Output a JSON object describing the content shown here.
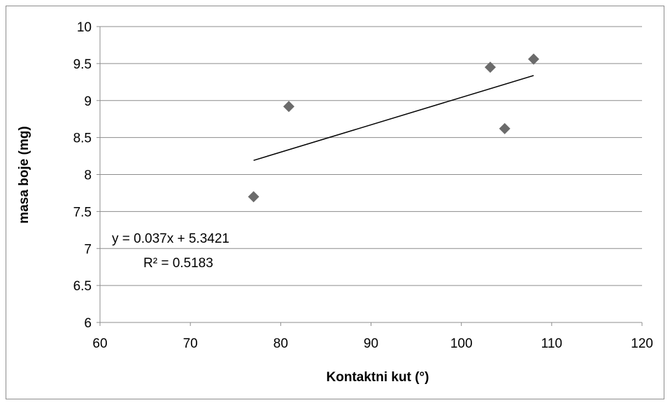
{
  "chart_data": {
    "type": "scatter",
    "title": "",
    "xlabel": "Kontaktni kut (°)",
    "ylabel": "masa boje (mg)",
    "xlim": [
      60,
      120
    ],
    "ylim": [
      6,
      10
    ],
    "x_ticks": [
      60,
      70,
      80,
      90,
      100,
      110,
      120
    ],
    "y_ticks": [
      6,
      6.5,
      7,
      7.5,
      8,
      8.5,
      9,
      9.5,
      10
    ],
    "x_tick_labels": [
      "60",
      "70",
      "80",
      "90",
      "100",
      "110",
      "120"
    ],
    "y_tick_labels": [
      "6",
      "6.5",
      "7",
      "7.5",
      "8",
      "8.5",
      "9",
      "9.5",
      "10"
    ],
    "grid": "horizontal",
    "legend": "none",
    "marker": "diamond",
    "marker_color": "#6b6b6b",
    "trendline_color": "#000000",
    "series": [
      {
        "x": [
          77.0,
          80.9,
          103.2,
          104.8,
          108.0
        ],
        "y": [
          7.7,
          8.92,
          9.45,
          8.62,
          9.56
        ]
      }
    ],
    "trendline": {
      "type": "linear",
      "slope": 0.037,
      "intercept": 5.3421,
      "x_range": [
        77.0,
        108.0
      ]
    },
    "annotations": {
      "equation": "y = 0.037x + 5.3421",
      "r_squared": "R² = 0.5183"
    }
  }
}
